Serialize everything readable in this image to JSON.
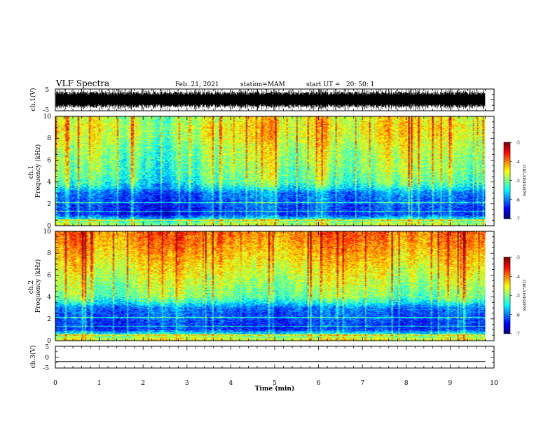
{
  "header": {
    "title": "VLF Spectra",
    "date": "Feb. 21, 2021",
    "station": "station=MAM",
    "start": "start UT =   20: 50: 1"
  },
  "chart_data": [
    {
      "type": "line",
      "panel": "ch1-waveform",
      "ylabel": "ch.1(V)",
      "ylim": [
        -5,
        5
      ],
      "yticks": [
        "5",
        "-5"
      ],
      "xlim": [
        0,
        10
      ],
      "note": "dense impulsive waveform filling most of the ±5 V range"
    },
    {
      "type": "heatmap",
      "panel": "ch1-spectrogram",
      "ylabel": "ch.1 Frequency (kHz)",
      "ylim": [
        0,
        10
      ],
      "yticks": [
        "0",
        "2",
        "4",
        "6",
        "8",
        "10"
      ],
      "xlim": [
        0,
        10
      ],
      "colorbar": {
        "label": "log(PSD)(V²/Hz)",
        "range": [
          -7,
          -3
        ],
        "ticks": [
          "-3",
          "-4",
          "-5",
          "-6",
          "-7"
        ]
      },
      "profile": {
        "freq_kHz": [
          0.2,
          1,
          2,
          3,
          3.5,
          4,
          5,
          6,
          7,
          8,
          9,
          9.8
        ],
        "log_psd": [
          -4.8,
          -6.3,
          -6.2,
          -6.0,
          -5.5,
          -5.2,
          -5.0,
          -4.9,
          -4.8,
          -4.6,
          -4.5,
          -4.6
        ]
      }
    },
    {
      "type": "heatmap",
      "panel": "ch2-spectrogram",
      "ylabel": "ch.2 Frequency (kHz)",
      "ylim": [
        0,
        10
      ],
      "yticks": [
        "0",
        "2",
        "4",
        "6",
        "8",
        "10"
      ],
      "xlim": [
        0,
        10
      ],
      "colorbar": {
        "label": "log(PSD)(V²/Hz)",
        "range": [
          -7,
          -3
        ],
        "ticks": [
          "-3",
          "-4",
          "-5",
          "-6",
          "-7"
        ]
      },
      "profile": {
        "freq_kHz": [
          0.2,
          1,
          2,
          3,
          3.5,
          4,
          5,
          6,
          7,
          8,
          9,
          9.8
        ],
        "log_psd": [
          -4.6,
          -6.3,
          -6.2,
          -6.0,
          -5.4,
          -5.0,
          -4.8,
          -4.6,
          -4.4,
          -4.2,
          -4.0,
          -3.9
        ]
      }
    },
    {
      "type": "line",
      "panel": "ch3-waveform",
      "ylabel": "ch.3(V)",
      "ylim": [
        -5,
        5
      ],
      "yticks": [
        "5",
        "0",
        "-5"
      ],
      "xlim": [
        0,
        10
      ],
      "x": [
        0,
        9.8
      ],
      "y": [
        -2,
        -2
      ]
    }
  ],
  "xaxis": {
    "label": "Time (min)",
    "ticks": [
      "0",
      "1",
      "2",
      "3",
      "4",
      "5",
      "6",
      "7",
      "8",
      "9",
      "10"
    ],
    "data_end_min": 9.8
  },
  "colors": {
    "scale": [
      "#00007f",
      "#0000ff",
      "#007fff",
      "#00ffff",
      "#7fff7f",
      "#ffff00",
      "#ff7f00",
      "#ff0000",
      "#7f0000"
    ]
  }
}
